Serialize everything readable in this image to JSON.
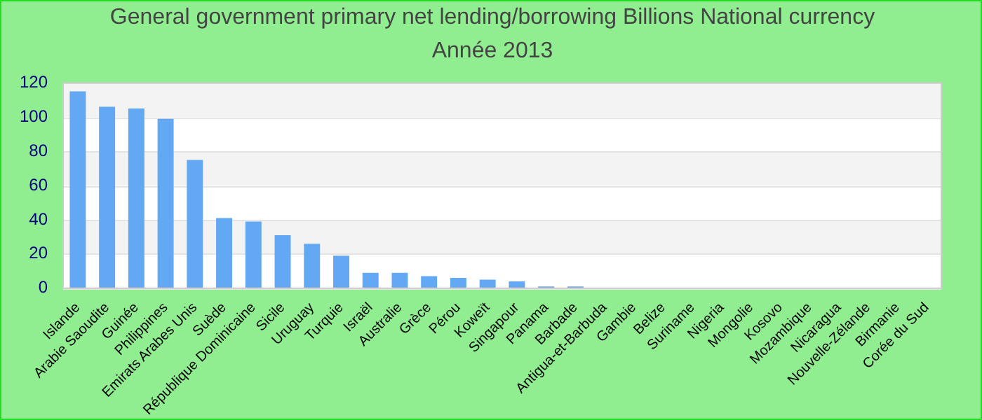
{
  "chart_data": {
    "type": "bar",
    "title": "General government primary net lending/borrowing Billions National currency",
    "subtitle": "Année 2013",
    "categories": [
      "Islande",
      "Arabie Saoudite",
      "Guinée",
      "Philippines",
      "Emirats Arabes Unis",
      "Suède",
      "République Dominicaine",
      "Sicile",
      "Uruguay",
      "Turquie",
      "Israël",
      "Australie",
      "Grèce",
      "Pérou",
      "Koweït",
      "Singapour",
      "Panama",
      "Barbade",
      "Antigua-et-Barbuda",
      "Gambie",
      "Belize",
      "Suriname",
      "Nigeria",
      "Mongolie",
      "Kosovo",
      "Mozambique",
      "Nicaragua",
      "Nouvelle-Zélande",
      "Birmanie",
      "Corée du Sud"
    ],
    "values": [
      115,
      106,
      105,
      99,
      75,
      41,
      39,
      31,
      26,
      19,
      9,
      9,
      7,
      6,
      5,
      4,
      1,
      1,
      null,
      null,
      null,
      null,
      null,
      null,
      null,
      null,
      null,
      null,
      null,
      null
    ],
    "color": "#63a8f2",
    "ylim": [
      0,
      120
    ],
    "yticks": [
      0,
      20,
      40,
      60,
      80,
      100,
      120
    ],
    "grid": true
  }
}
